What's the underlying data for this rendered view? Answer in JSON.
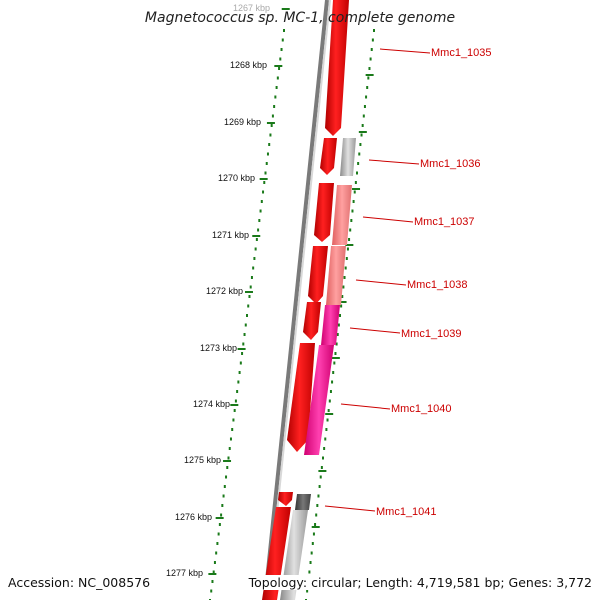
{
  "title": "Magnetococcus sp. MC-1, complete genome",
  "footer": {
    "accession": "Accession: NC_008576",
    "summary": "Topology: circular; Length: 4,719,581 bp; Genes: 3,772"
  },
  "axis": {
    "ticks": [
      "1267 kbp",
      "1268 kbp",
      "1269 kbp",
      "1270 kbp",
      "1271 kbp",
      "1272 kbp",
      "1273 kbp",
      "1274 kbp",
      "1275 kbp",
      "1276 kbp",
      "1277 kbp"
    ]
  },
  "gene_labels": [
    "Mmc1_1035",
    "Mmc1_1036",
    "Mmc1_1037",
    "Mmc1_1038",
    "Mmc1_1039",
    "Mmc1_1040",
    "Mmc1_1041"
  ],
  "colors": {
    "backbone": "#7a7a7a",
    "tick_dots": "#1a7a1a",
    "gene_red": "#ee0000",
    "label_red": "#cc0000",
    "pink": "#ff2a9a",
    "salmon": "#f08080",
    "gray": "#b0b0b0",
    "dark_gray": "#5a5a5a"
  }
}
